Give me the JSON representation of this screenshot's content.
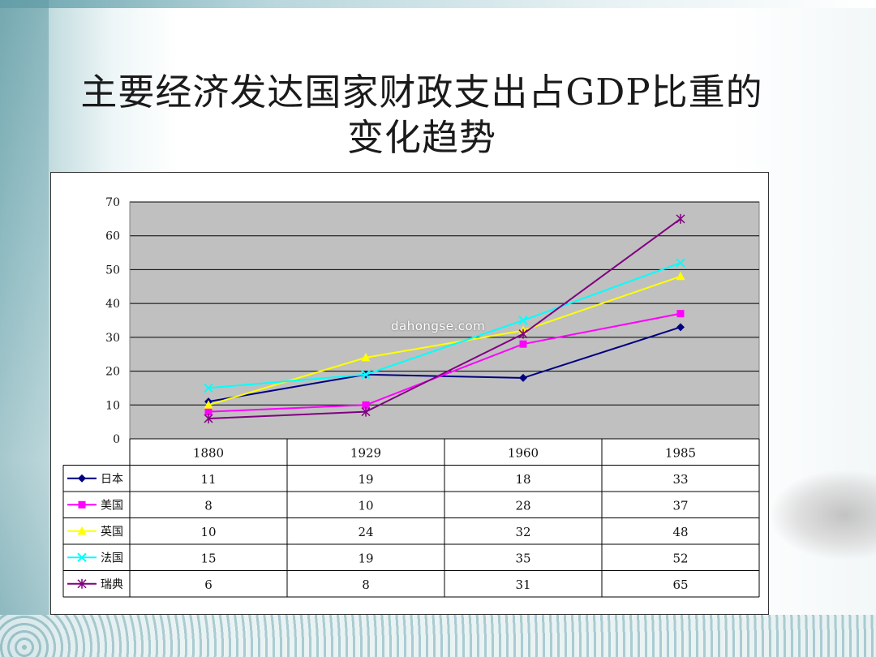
{
  "slide": {
    "title_line1": "主要经济发达国家财政支出占GDP比重的",
    "title_line2": "变化趋势",
    "watermark": "dahongse.com"
  },
  "chart_data": {
    "type": "line",
    "categories": [
      "1880",
      "1929",
      "1960",
      "1985"
    ],
    "ylim": [
      0,
      70
    ],
    "yticks": [
      0,
      10,
      20,
      30,
      40,
      50,
      60,
      70
    ],
    "grid": true,
    "plot_background": "#c0c0c0",
    "legend": "data-table-below",
    "series": [
      {
        "name": "日本",
        "values": [
          11,
          19,
          18,
          33
        ],
        "color": "#000080",
        "marker": "diamond"
      },
      {
        "name": "美国",
        "values": [
          8,
          10,
          28,
          37
        ],
        "color": "#ff00ff",
        "marker": "square"
      },
      {
        "name": "英国",
        "values": [
          10,
          24,
          32,
          48
        ],
        "color": "#ffff00",
        "marker": "triangle"
      },
      {
        "name": "法国",
        "values": [
          15,
          19,
          35,
          52
        ],
        "color": "#00ffff",
        "marker": "x"
      },
      {
        "name": "瑞典",
        "values": [
          6,
          8,
          31,
          65
        ],
        "color": "#800080",
        "marker": "star"
      }
    ]
  }
}
